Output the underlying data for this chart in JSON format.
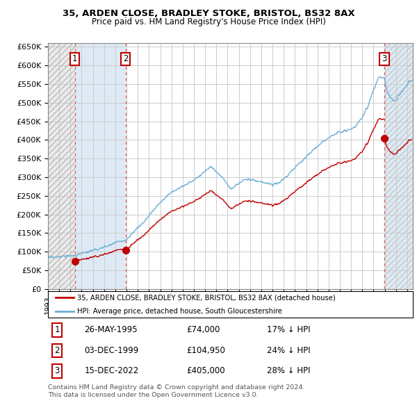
{
  "title1": "35, ARDEN CLOSE, BRADLEY STOKE, BRISTOL, BS32 8AX",
  "title2": "Price paid vs. HM Land Registry's House Price Index (HPI)",
  "ylim": [
    0,
    660000
  ],
  "yticks": [
    0,
    50000,
    100000,
    150000,
    200000,
    250000,
    300000,
    350000,
    400000,
    450000,
    500000,
    550000,
    600000,
    650000
  ],
  "ytick_labels": [
    "£0",
    "£50K",
    "£100K",
    "£150K",
    "£200K",
    "£250K",
    "£300K",
    "£350K",
    "£400K",
    "£450K",
    "£500K",
    "£550K",
    "£600K",
    "£650K"
  ],
  "xlim_start": 1993.0,
  "xlim_end": 2025.5,
  "hpi_color": "#6aaed6",
  "price_color": "#c00000",
  "purchases": [
    {
      "date": 1995.4,
      "price": 74000,
      "label": "1"
    },
    {
      "date": 1999.92,
      "price": 104950,
      "label": "2"
    },
    {
      "date": 2022.96,
      "price": 405000,
      "label": "3"
    }
  ],
  "legend_house_label": "35, ARDEN CLOSE, BRADLEY STOKE, BRISTOL, BS32 8AX (detached house)",
  "legend_hpi_label": "HPI: Average price, detached house, South Gloucestershire",
  "footnote": "Contains HM Land Registry data © Crown copyright and database right 2024.\nThis data is licensed under the Open Government Licence v3.0.",
  "table_rows": [
    {
      "num": "1",
      "date": "26-MAY-1995",
      "price": "£74,000",
      "note": "17% ↓ HPI"
    },
    {
      "num": "2",
      "date": "03-DEC-1999",
      "price": "£104,950",
      "note": "24% ↓ HPI"
    },
    {
      "num": "3",
      "date": "15-DEC-2022",
      "price": "£405,000",
      "note": "28% ↓ HPI"
    }
  ],
  "grid_color": "#cccccc",
  "hatch_region_end": 1995.4,
  "blue_region1_start": 1995.4,
  "blue_region1_end": 1999.92,
  "blue_region2_start": 2022.96,
  "blue_region2_end": 2025.5,
  "blue_region_color": "#ddeaf5",
  "hatch_color": "#c8c8c8",
  "white_region_start": 1999.92,
  "white_region_end": 2022.96
}
